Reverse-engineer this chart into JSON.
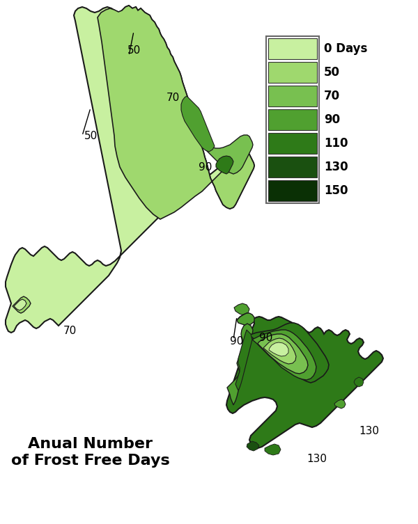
{
  "title": "Anual Number\nof Frost Free Days",
  "title_fontsize": 16,
  "title_fontweight": "bold",
  "legend_labels": [
    "0 Days",
    "50",
    "70",
    "90",
    "110",
    "130",
    "150"
  ],
  "legend_colors": [
    "#c8f0a0",
    "#9fd86e",
    "#78c050",
    "#50a030",
    "#2e7a18",
    "#1a5010",
    "#0a3005"
  ],
  "background_color": "#ffffff",
  "figsize": [
    6.0,
    7.53
  ],
  "dpi": 100
}
